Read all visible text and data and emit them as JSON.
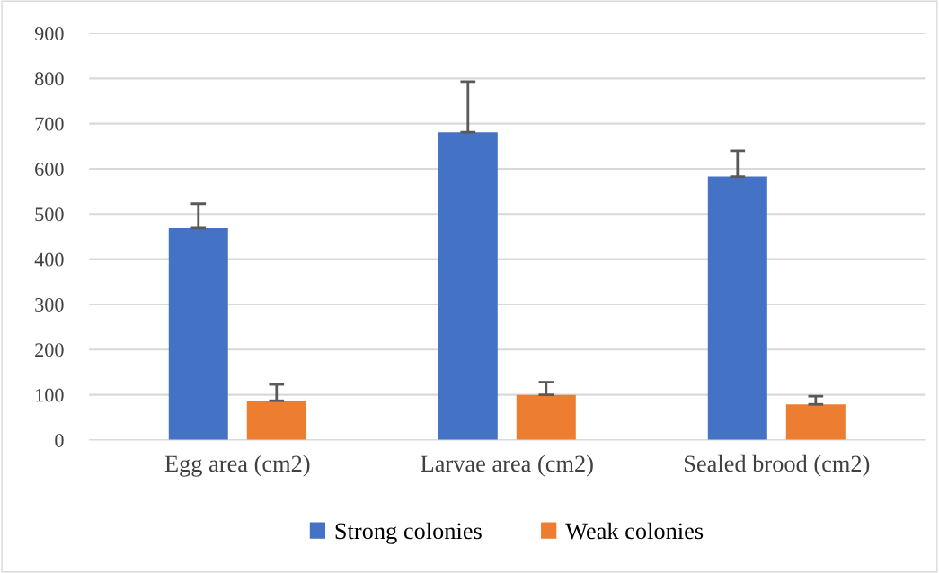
{
  "chart_data": {
    "type": "bar",
    "categories": [
      "Egg area (cm2)",
      "Larvae area (cm2)",
      "Sealed brood (cm2)"
    ],
    "series": [
      {
        "name": "Strong colonies",
        "color": "#4472c4",
        "values": [
          469,
          681,
          583
        ],
        "errors": [
          [
            469,
            523
          ],
          [
            681,
            793
          ],
          [
            583,
            640
          ]
        ]
      },
      {
        "name": "Weak colonies",
        "color": "#ed7d31",
        "values": [
          87,
          100,
          79
        ],
        "errors": [
          [
            87,
            123
          ],
          [
            100,
            128
          ],
          [
            79,
            97
          ]
        ]
      }
    ],
    "ylim": [
      0,
      900
    ],
    "yticks": [
      0,
      100,
      200,
      300,
      400,
      500,
      600,
      700,
      800,
      900
    ],
    "grid": "y",
    "legend": "bottom"
  }
}
